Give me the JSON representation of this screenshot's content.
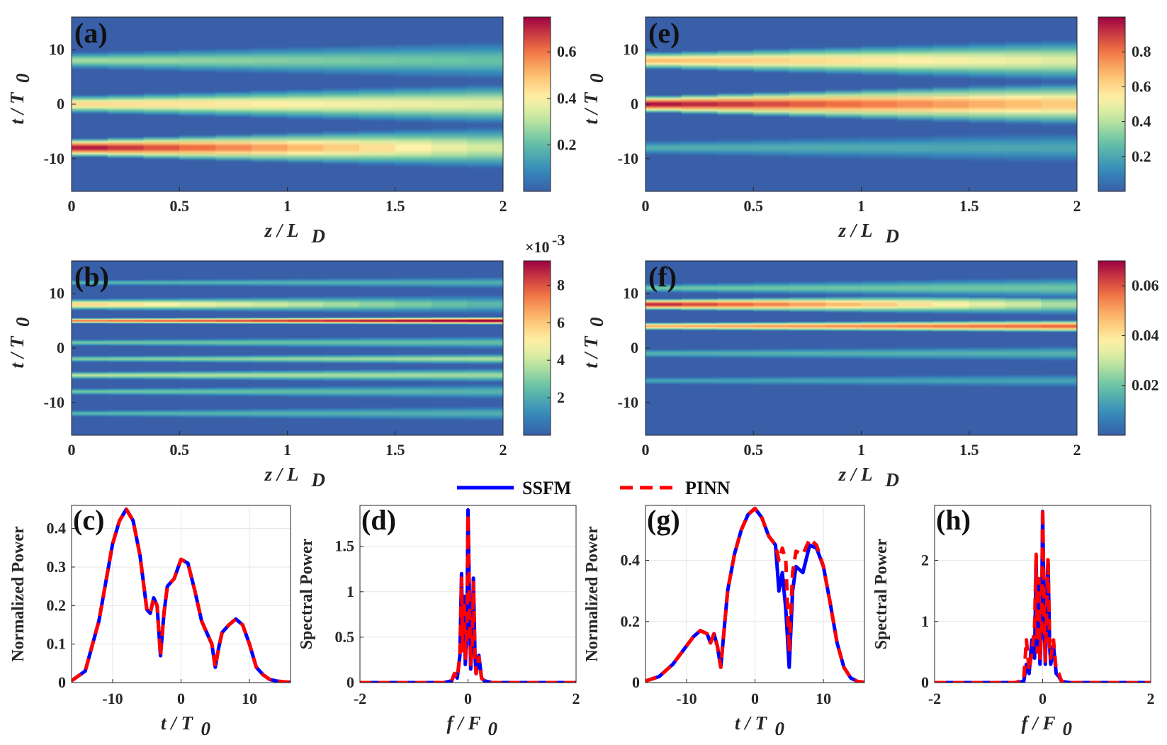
{
  "chart_data": [
    {
      "id": "a",
      "type": "heatmap",
      "panel_label": "(a)",
      "xlabel_main": "z / L",
      "xlabel_sub": "D",
      "ylabel_main": "t / T",
      "ylabel_sub": "0",
      "xticks": [
        "0",
        "0.5",
        "1",
        "1.5",
        "2"
      ],
      "yticks": [
        "10",
        "0",
        "-10"
      ],
      "xlim": [
        0,
        2
      ],
      "ylim": [
        -16,
        16
      ],
      "colorbar": {
        "min": 0,
        "max": 0.75,
        "ticks": [
          "0.2",
          "0.4",
          "0.6"
        ],
        "tickvals": [
          0.2,
          0.4,
          0.6
        ],
        "exponent": ""
      },
      "beams": [
        {
          "t0": -8,
          "amp": 0.75,
          "decay": 0.55,
          "w0": 1.6,
          "spread": 1.1
        },
        {
          "t0": 0,
          "amp": 0.47,
          "decay": 0.2,
          "w0": 1.6,
          "spread": 1.0
        },
        {
          "t0": 8,
          "amp": 0.3,
          "decay": 0.25,
          "w0": 1.5,
          "spread": 1.0
        }
      ]
    },
    {
      "id": "b",
      "type": "heatmap",
      "panel_label": "(b)",
      "xlabel_main": "z / L",
      "xlabel_sub": "D",
      "ylabel_main": "t / T",
      "ylabel_sub": "0",
      "xticks": [
        "0",
        "0.5",
        "1",
        "1.5",
        "2"
      ],
      "yticks": [
        "10",
        "0",
        "-10"
      ],
      "xlim": [
        0,
        2
      ],
      "ylim": [
        -16,
        16
      ],
      "colorbar": {
        "min": 0,
        "max": 9.3,
        "ticks": [
          "2",
          "4",
          "6",
          "8"
        ],
        "tickvals": [
          2,
          4,
          6,
          8
        ],
        "exponent": "×10"
      },
      "beams": [
        {
          "t0": 8,
          "amp": 6,
          "decay": 0.6,
          "w0": 1.0,
          "spread": 0.4
        },
        {
          "t0": 5,
          "amp": 7.5,
          "decay": -0.3,
          "w0": 0.5,
          "spread": 0.1
        },
        {
          "t0": 1,
          "amp": 3,
          "decay": 0.1,
          "w0": 0.6,
          "spread": 0.3
        },
        {
          "t0": -2,
          "amp": 3.2,
          "decay": -0.2,
          "w0": 0.6,
          "spread": 0.2
        },
        {
          "t0": -5,
          "amp": 4,
          "decay": 0.1,
          "w0": 0.7,
          "spread": 0.3
        },
        {
          "t0": -8,
          "amp": 3,
          "decay": 0.2,
          "w0": 0.6,
          "spread": 0.4
        },
        {
          "t0": 12,
          "amp": 2.5,
          "decay": 0.1,
          "w0": 0.5,
          "spread": 0.3
        },
        {
          "t0": -12,
          "amp": 2.5,
          "decay": 0.1,
          "w0": 0.6,
          "spread": 0.4
        }
      ]
    },
    {
      "id": "e",
      "type": "heatmap",
      "panel_label": "(e)",
      "xlabel_main": "z / L",
      "xlabel_sub": "D",
      "ylabel_main": "t / T",
      "ylabel_sub": "0",
      "xticks": [
        "0",
        "0.5",
        "1",
        "1.5",
        "2"
      ],
      "yticks": [
        "10",
        "0",
        "-10"
      ],
      "xlim": [
        0,
        2
      ],
      "ylim": [
        -16,
        16
      ],
      "colorbar": {
        "min": 0,
        "max": 1.0,
        "ticks": [
          "0.2",
          "0.4",
          "0.6",
          "0.8"
        ],
        "tickvals": [
          0.2,
          0.4,
          0.6,
          0.8
        ],
        "exponent": ""
      },
      "beams": [
        {
          "t0": 0,
          "amp": 1.0,
          "decay": 0.35,
          "w0": 1.5,
          "spread": 1.2
        },
        {
          "t0": 8,
          "amp": 0.7,
          "decay": 0.3,
          "w0": 1.5,
          "spread": 1.1
        },
        {
          "t0": -8,
          "amp": 0.25,
          "decay": 0.1,
          "w0": 1.3,
          "spread": 0.8
        }
      ]
    },
    {
      "id": "f",
      "type": "heatmap",
      "panel_label": "(f)",
      "xlabel_main": "z / L",
      "xlabel_sub": "D",
      "ylabel_main": "t / T",
      "ylabel_sub": "0",
      "xticks": [
        "0",
        "0.5",
        "1",
        "1.5",
        "2"
      ],
      "yticks": [
        "10",
        "0",
        "-10"
      ],
      "xlim": [
        0,
        2
      ],
      "ylim": [
        -16,
        16
      ],
      "colorbar": {
        "min": 0,
        "max": 0.07,
        "ticks": [
          "0.02",
          "0.04",
          "0.06"
        ],
        "tickvals": [
          0.02,
          0.04,
          0.06
        ],
        "exponent": ""
      },
      "beams": [
        {
          "t0": 8,
          "amp": 0.068,
          "decay": 0.6,
          "w0": 1.0,
          "spread": 0.5
        },
        {
          "t0": 4,
          "amp": 0.05,
          "decay": -0.2,
          "w0": 0.7,
          "spread": 0.2
        },
        {
          "t0": 11,
          "amp": 0.022,
          "decay": 0,
          "w0": 0.8,
          "spread": 0.6
        },
        {
          "t0": -1,
          "amp": 0.018,
          "decay": 0,
          "w0": 0.8,
          "spread": 0.3
        },
        {
          "t0": -6,
          "amp": 0.015,
          "decay": 0,
          "w0": 0.7,
          "spread": 0.3
        }
      ]
    },
    {
      "id": "c",
      "type": "line",
      "panel_label": "(c)",
      "xlabel_main": "t / T",
      "xlabel_sub": "0",
      "ylabel": "Normalized Power",
      "xlim": [
        -16,
        16
      ],
      "ylim": [
        0,
        0.46
      ],
      "xticks": [
        "-10",
        "0",
        "10"
      ],
      "xtickvals": [
        -10,
        0,
        10
      ],
      "yticks": [
        "0",
        "0.1",
        "0.2",
        "0.3",
        "0.4"
      ],
      "ytickvals": [
        0,
        0.1,
        0.2,
        0.3,
        0.4
      ],
      "x": [
        -16,
        -14,
        -12,
        -10,
        -9,
        -8,
        -7,
        -6,
        -5,
        -4.5,
        -4,
        -3.5,
        -3,
        -2.5,
        -2,
        -1,
        0,
        1,
        2,
        3,
        4,
        4.5,
        5,
        5.5,
        6,
        7,
        8,
        9,
        10,
        11,
        12,
        13,
        14,
        15,
        16
      ],
      "series": [
        {
          "name": "SSFM",
          "values": [
            0.005,
            0.03,
            0.16,
            0.36,
            0.42,
            0.45,
            0.42,
            0.33,
            0.19,
            0.18,
            0.22,
            0.2,
            0.07,
            0.18,
            0.25,
            0.27,
            0.32,
            0.31,
            0.24,
            0.16,
            0.12,
            0.1,
            0.04,
            0.09,
            0.13,
            0.15,
            0.165,
            0.15,
            0.1,
            0.04,
            0.02,
            0.008,
            0.004,
            0.002,
            0.001
          ]
        },
        {
          "name": "PINN",
          "values": [
            0.005,
            0.03,
            0.16,
            0.36,
            0.42,
            0.45,
            0.42,
            0.33,
            0.19,
            0.18,
            0.22,
            0.2,
            0.07,
            0.18,
            0.25,
            0.27,
            0.32,
            0.31,
            0.24,
            0.16,
            0.12,
            0.1,
            0.04,
            0.09,
            0.13,
            0.15,
            0.165,
            0.15,
            0.1,
            0.04,
            0.02,
            0.008,
            0.004,
            0.002,
            0.001
          ]
        }
      ]
    },
    {
      "id": "d",
      "type": "line",
      "panel_label": "(d)",
      "xlabel_main": "f / F",
      "xlabel_sub": "0",
      "ylabel": "Spectral Power",
      "xlim": [
        -2,
        2
      ],
      "ylim": [
        0,
        1.95
      ],
      "xticks": [
        "-2",
        "0",
        "2"
      ],
      "xtickvals": [
        -2,
        0,
        2
      ],
      "yticks": [
        "0",
        "0.5",
        "1",
        "1.5"
      ],
      "ytickvals": [
        0,
        0.5,
        1,
        1.5
      ],
      "x": [
        -2,
        -0.45,
        -0.3,
        -0.25,
        -0.2,
        -0.15,
        -0.12,
        -0.1,
        -0.07,
        -0.05,
        -0.02,
        0,
        0.03,
        0.05,
        0.08,
        0.1,
        0.13,
        0.15,
        0.2,
        0.25,
        0.3,
        0.45,
        2
      ],
      "series": [
        {
          "name": "SSFM",
          "values": [
            0,
            0,
            0.02,
            0.1,
            0.05,
            0.3,
            1.2,
            0.4,
            0.95,
            0.2,
            0.6,
            1.9,
            0.8,
            0.15,
            0.5,
            1.15,
            0.3,
            0.1,
            0.3,
            0.05,
            0.02,
            0,
            0
          ]
        },
        {
          "name": "PINN",
          "values": [
            0,
            0,
            0.02,
            0.1,
            0.05,
            0.3,
            1.15,
            0.35,
            0.9,
            0.25,
            0.55,
            1.85,
            0.75,
            0.2,
            0.45,
            1.1,
            0.25,
            0.1,
            0.28,
            0.05,
            0.02,
            0,
            0
          ]
        }
      ]
    },
    {
      "id": "g",
      "type": "line",
      "panel_label": "(g)",
      "xlabel_main": "t / T",
      "xlabel_sub": "0",
      "ylabel": "Normalized Power",
      "xlim": [
        -16,
        16
      ],
      "ylim": [
        0,
        0.58
      ],
      "xticks": [
        "-10",
        "0",
        "10"
      ],
      "xtickvals": [
        -10,
        0,
        10
      ],
      "yticks": [
        "0",
        "0.2",
        "0.4"
      ],
      "ytickvals": [
        0,
        0.2,
        0.4
      ],
      "x": [
        -16,
        -14,
        -12,
        -10,
        -9,
        -8,
        -7,
        -6.5,
        -6,
        -5.5,
        -5,
        -4,
        -3,
        -2,
        -1,
        0,
        1,
        2,
        3,
        3.5,
        4,
        4.5,
        5,
        5.5,
        6,
        7,
        8,
        9,
        10,
        11,
        12,
        13,
        14,
        15,
        16
      ],
      "series": [
        {
          "name": "SSFM",
          "values": [
            0.005,
            0.02,
            0.06,
            0.12,
            0.15,
            0.17,
            0.16,
            0.13,
            0.16,
            0.12,
            0.05,
            0.3,
            0.42,
            0.5,
            0.55,
            0.57,
            0.54,
            0.48,
            0.45,
            0.3,
            0.36,
            0.24,
            0.05,
            0.3,
            0.38,
            0.36,
            0.45,
            0.44,
            0.38,
            0.26,
            0.13,
            0.05,
            0.015,
            0.004,
            0.001
          ]
        },
        {
          "name": "PINN",
          "values": [
            0.005,
            0.02,
            0.06,
            0.12,
            0.15,
            0.17,
            0.16,
            0.13,
            0.16,
            0.12,
            0.05,
            0.3,
            0.42,
            0.5,
            0.55,
            0.57,
            0.54,
            0.48,
            0.45,
            0.4,
            0.44,
            0.4,
            0.1,
            0.36,
            0.43,
            0.42,
            0.47,
            0.45,
            0.38,
            0.26,
            0.13,
            0.05,
            0.015,
            0.004,
            0.001
          ]
        }
      ]
    },
    {
      "id": "h",
      "type": "line",
      "panel_label": "(h)",
      "xlabel_main": "f / F",
      "xlabel_sub": "0",
      "ylabel": "Spectral Power",
      "xlim": [
        -2,
        2
      ],
      "ylim": [
        0,
        2.9
      ],
      "xticks": [
        "-2",
        "0",
        "2"
      ],
      "xtickvals": [
        -2,
        0,
        2
      ],
      "yticks": [
        "0",
        "1",
        "2"
      ],
      "ytickvals": [
        0,
        1,
        2
      ],
      "x": [
        -2,
        -0.5,
        -0.35,
        -0.3,
        -0.25,
        -0.2,
        -0.15,
        -0.12,
        -0.1,
        -0.07,
        -0.05,
        -0.02,
        0,
        0.03,
        0.05,
        0.08,
        0.1,
        0.13,
        0.15,
        0.2,
        0.25,
        0.3,
        0.35,
        0.5,
        2
      ],
      "series": [
        {
          "name": "SSFM",
          "values": [
            0,
            0,
            0.02,
            0.3,
            0.15,
            0.7,
            0.4,
            2.0,
            0.6,
            1.6,
            0.3,
            1.0,
            2.8,
            0.9,
            0.3,
            1.5,
            2.0,
            0.6,
            0.3,
            0.6,
            0.15,
            0.1,
            0.02,
            0,
            0
          ]
        },
        {
          "name": "PINN",
          "values": [
            0,
            0,
            0.05,
            0.7,
            0.2,
            0.5,
            0.9,
            2.1,
            0.5,
            1.7,
            0.4,
            0.9,
            2.85,
            1.0,
            0.35,
            1.4,
            2.05,
            0.55,
            0.4,
            0.7,
            0.2,
            0.15,
            0.02,
            0,
            0
          ]
        }
      ]
    }
  ],
  "legend": {
    "items": [
      {
        "name": "SSFM",
        "color": "#0000ff",
        "style": "solid"
      },
      {
        "name": "PINN",
        "color": "#ff0000",
        "style": "dashed"
      }
    ]
  },
  "colors": {
    "ssfm": "#0000ff",
    "pinn": "#ff0000",
    "axis": "#262626",
    "grid": "#e6e6e6"
  },
  "colorbar_exponent_power": "-3"
}
